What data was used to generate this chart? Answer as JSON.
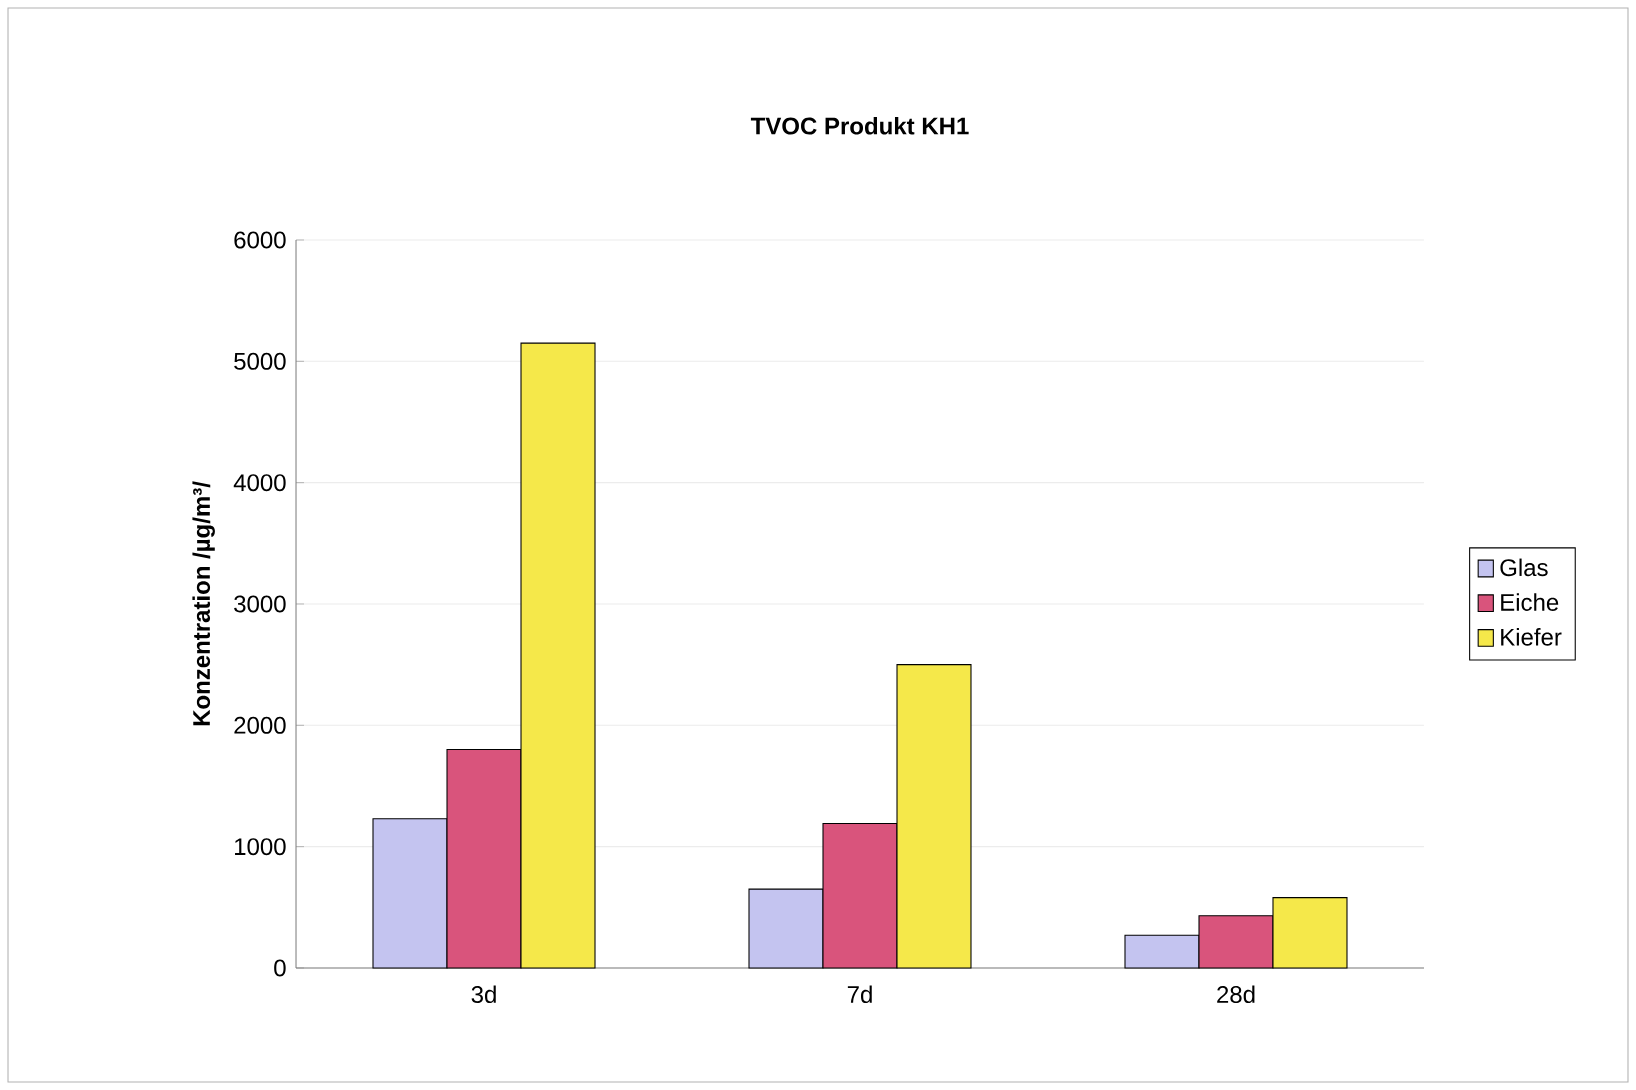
{
  "chart_data": {
    "type": "bar",
    "title": "TVOC Produkt KH1",
    "ylabel": "Konzentration /µg/m³/",
    "categories": [
      "3d",
      "7d",
      "28d"
    ],
    "series": [
      {
        "name": "Glas",
        "color": "#c4c4f0",
        "values": [
          1230,
          650,
          270
        ]
      },
      {
        "name": "Eiche",
        "color": "#d9547c",
        "values": [
          1800,
          1190,
          430
        ]
      },
      {
        "name": "Kiefer",
        "color": "#f5e84a",
        "values": [
          5150,
          2500,
          580
        ]
      }
    ],
    "ylim": [
      0,
      6000
    ],
    "yticks": [
      0,
      1000,
      2000,
      3000,
      4000,
      5000,
      6000
    ],
    "grid": "y",
    "legend": "right"
  }
}
